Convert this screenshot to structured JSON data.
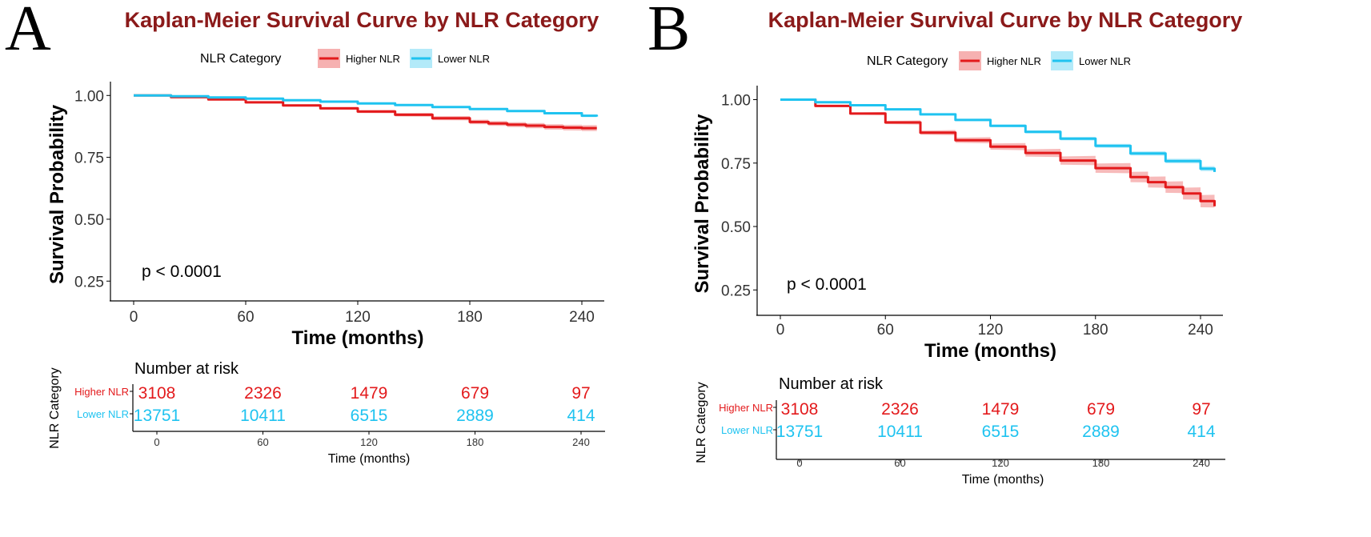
{
  "chart_data": [
    {
      "panel_label": "A",
      "type": "line",
      "subtype": "kaplan-meier",
      "title": "Kaplan-Meier Survival Curve by NLR Category",
      "legend_title": "NLR Category",
      "legend_position": "top",
      "xlabel": "Time (months)",
      "ylabel": "Survival Probability",
      "xlim": [
        0,
        250
      ],
      "ylim": [
        0.17,
        1.03
      ],
      "xticks": [
        "0",
        "60",
        "120",
        "180",
        "240"
      ],
      "yticks": [
        "0.25",
        "0.50",
        "0.75",
        "1.00"
      ],
      "pvalue": "p < 0.0001",
      "series": [
        {
          "name": "Higher NLR",
          "color": "#e31a1c",
          "band_color": "#f4a3a3",
          "x": [
            0,
            20,
            40,
            60,
            80,
            100,
            120,
            140,
            160,
            180,
            190,
            200,
            210,
            220,
            230,
            240,
            248
          ],
          "y": [
            1.0,
            0.993,
            0.984,
            0.972,
            0.96,
            0.948,
            0.935,
            0.922,
            0.908,
            0.893,
            0.887,
            0.882,
            0.878,
            0.873,
            0.87,
            0.868,
            0.868
          ],
          "band": 0.012
        },
        {
          "name": "Lower NLR",
          "color": "#1fc3f0",
          "band_color": "#a6e6f8",
          "x": [
            0,
            20,
            40,
            60,
            80,
            100,
            120,
            140,
            160,
            180,
            200,
            220,
            240,
            248
          ],
          "y": [
            1.0,
            0.997,
            0.992,
            0.987,
            0.981,
            0.975,
            0.968,
            0.961,
            0.953,
            0.945,
            0.937,
            0.928,
            0.918,
            0.915
          ],
          "band": 0.004
        }
      ],
      "risk_table": {
        "title": "Number at risk",
        "ylabel": "NLR Category",
        "xlabel": "Time (months)",
        "times": [
          "0",
          "60",
          "120",
          "180",
          "240"
        ],
        "rows": [
          {
            "label": "Higher NLR",
            "counts": [
              "3108",
              "2326",
              "1479",
              "679",
              "97"
            ]
          },
          {
            "label": "Lower NLR",
            "counts": [
              "13751",
              "10411",
              "6515",
              "2889",
              "414"
            ]
          }
        ]
      }
    },
    {
      "panel_label": "B",
      "type": "line",
      "subtype": "kaplan-meier",
      "title": "Kaplan-Meier Survival Curve by NLR Category",
      "legend_title": "NLR Category",
      "legend_position": "top",
      "xlabel": "Time (months)",
      "ylabel": "Survival Probability",
      "xlim": [
        0,
        250
      ],
      "ylim": [
        0.15,
        1.03
      ],
      "xticks": [
        "0",
        "60",
        "120",
        "180",
        "240"
      ],
      "yticks": [
        "0.25",
        "0.50",
        "0.75",
        "1.00"
      ],
      "pvalue": "p < 0.0001",
      "series": [
        {
          "name": "Higher NLR",
          "color": "#e31a1c",
          "band_color": "#f4a3a3",
          "x": [
            0,
            20,
            40,
            60,
            80,
            100,
            120,
            140,
            160,
            180,
            200,
            210,
            220,
            230,
            240,
            248
          ],
          "y": [
            1.0,
            0.975,
            0.945,
            0.91,
            0.87,
            0.84,
            0.815,
            0.79,
            0.76,
            0.73,
            0.695,
            0.675,
            0.655,
            0.63,
            0.6,
            0.58
          ],
          "band": 0.025
        },
        {
          "name": "Lower NLR",
          "color": "#1fc3f0",
          "band_color": "#a6e6f8",
          "x": [
            0,
            20,
            40,
            60,
            80,
            100,
            120,
            140,
            160,
            180,
            200,
            220,
            240,
            248
          ],
          "y": [
            1.0,
            0.99,
            0.978,
            0.962,
            0.942,
            0.92,
            0.897,
            0.873,
            0.846,
            0.818,
            0.788,
            0.758,
            0.728,
            0.715
          ],
          "band": 0.01
        }
      ],
      "risk_table": {
        "title": "Number at risk",
        "ylabel": "NLR Category",
        "xlabel": "Time (months)",
        "times": [
          "0",
          "60",
          "120",
          "180",
          "240"
        ],
        "rows": [
          {
            "label": "Higher NLR",
            "counts": [
              "3108",
              "2326",
              "1479",
              "679",
              "97"
            ]
          },
          {
            "label": "Lower NLR",
            "counts": [
              "13751",
              "10411",
              "6515",
              "2889",
              "414"
            ]
          }
        ]
      }
    }
  ],
  "colors": {
    "title": "#8b1a1a",
    "higher": "#e31a1c",
    "lower": "#1fc3f0",
    "axis": "#000000"
  }
}
